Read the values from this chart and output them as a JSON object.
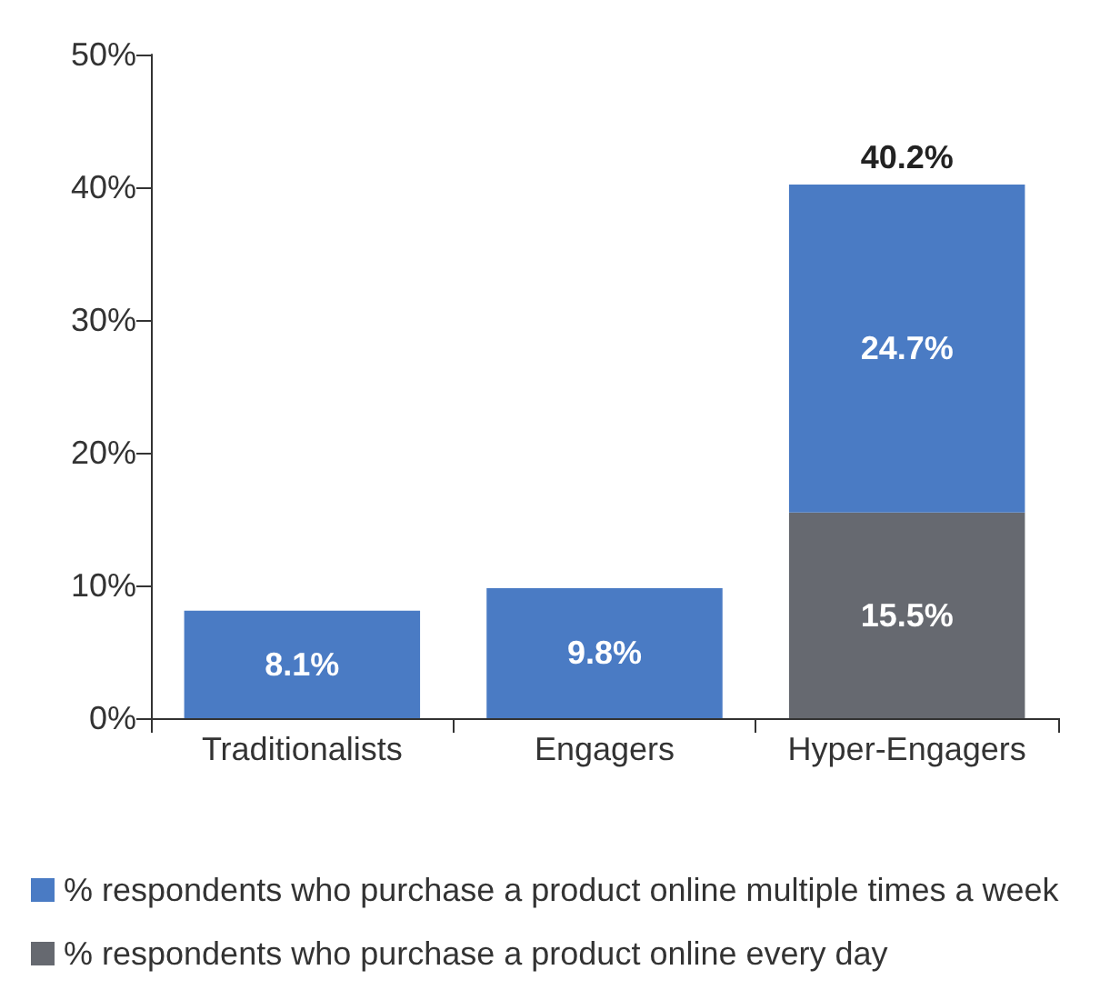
{
  "chart_data": {
    "type": "bar",
    "stacked": true,
    "categories": [
      "Traditionalists",
      "Engagers",
      "Hyper-Engagers"
    ],
    "series": [
      {
        "name": "% respondents who purchase a product online every day",
        "color": "#666970",
        "values": [
          null,
          null,
          15.5
        ],
        "value_labels": [
          null,
          null,
          "15.5%"
        ]
      },
      {
        "name": "% respondents who purchase a product online multiple times a week",
        "color": "#4a7bc4",
        "values": [
          8.1,
          9.8,
          24.7
        ],
        "value_labels": [
          "8.1%",
          "9.8%",
          "24.7%"
        ]
      }
    ],
    "totals": [
      null,
      null,
      "40.2%"
    ],
    "ylim": [
      0,
      50
    ],
    "yticks": [
      {
        "value": 0,
        "label": "0%"
      },
      {
        "value": 10,
        "label": "10%"
      },
      {
        "value": 20,
        "label": "20%"
      },
      {
        "value": 30,
        "label": "30%"
      },
      {
        "value": 40,
        "label": "40%"
      },
      {
        "value": 50,
        "label": "50%"
      }
    ],
    "grid": false,
    "legend": "bottom"
  }
}
